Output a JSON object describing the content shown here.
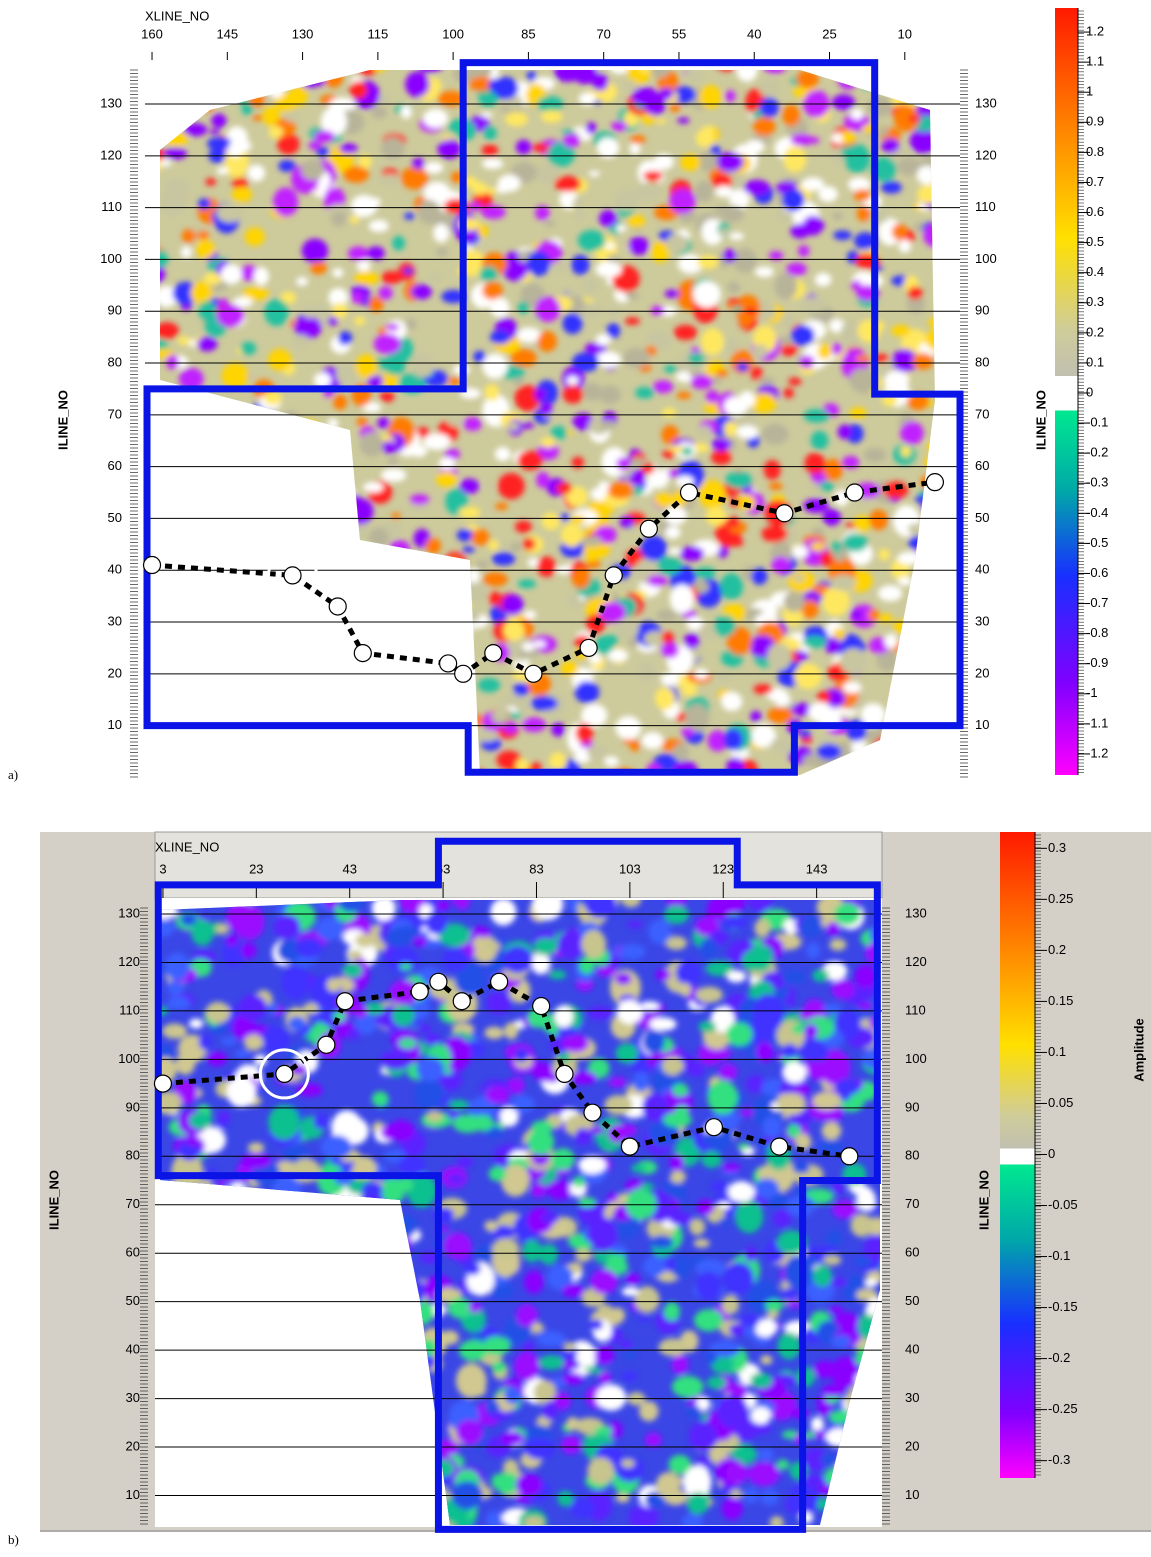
{
  "chart_data": [
    {
      "type": "heatmap",
      "panel_label": "a)",
      "xlabel": "XLINE_NO",
      "ylabel": "ILINE_NO",
      "xticks": [
        160,
        145,
        130,
        115,
        100,
        85,
        70,
        55,
        40,
        25,
        10
      ],
      "xlim": [
        161.4,
        -1
      ],
      "yticks": [
        10,
        20,
        30,
        40,
        50,
        60,
        70,
        80,
        90,
        100,
        110,
        120,
        130
      ],
      "ylim": [
        -0.5,
        138.5
      ],
      "colorbar": {
        "ticks": [
          1.2,
          1.1,
          1,
          0.9,
          0.8,
          0.7,
          0.6,
          0.5,
          0.4,
          0.3,
          0.2,
          0.1,
          0,
          -0.1,
          -0.2,
          -0.3,
          -0.4,
          -0.5,
          -0.6,
          -0.7,
          -0.8,
          -0.9,
          -1,
          -1.1,
          -1.2
        ],
        "lim": [
          -1.27,
          1.28
        ]
      },
      "outline": {
        "x": [
          161,
          97,
          97,
          32,
          32,
          -1,
          -1,
          16,
          16,
          98,
          98,
          161
        ],
        "y": [
          10,
          10,
          1,
          1,
          10,
          10,
          74,
          74,
          138,
          138,
          75,
          75
        ]
      },
      "horizon": {
        "x": [
          160,
          132,
          123,
          118,
          101,
          98,
          92,
          84,
          73,
          68,
          61,
          53,
          34,
          20,
          4
        ],
        "y": [
          41,
          39,
          33,
          24,
          22,
          20,
          24,
          20,
          25,
          39,
          48,
          55,
          51,
          55,
          57
        ]
      }
    },
    {
      "type": "heatmap",
      "panel_label": "b)",
      "xlabel": "XLINE_NO",
      "ylabel": "ILINE_NO",
      "xticks": [
        3,
        23,
        43,
        63,
        83,
        103,
        123,
        143
      ],
      "xlim": [
        1.3,
        157
      ],
      "yticks": [
        10,
        20,
        30,
        40,
        50,
        60,
        70,
        80,
        90,
        100,
        110,
        120,
        130
      ],
      "ylim": [
        3.5,
        133.3
      ],
      "colorbar": {
        "label": "Amplitude",
        "ticks": [
          0.3,
          0.25,
          0.2,
          0.15,
          0.1,
          0.05,
          0,
          -0.05,
          -0.1,
          -0.15,
          -0.2,
          -0.25,
          -0.3
        ],
        "lim": [
          -0.317,
          0.316
        ]
      },
      "outline": {
        "x": [
          2,
          62,
          62,
          126,
          126,
          156,
          156,
          140,
          140,
          62,
          62,
          2
        ],
        "y": [
          136,
          136,
          145,
          145,
          136,
          136,
          75,
          75,
          3,
          3,
          76,
          76
        ]
      },
      "horizon": {
        "x": [
          3,
          29,
          38,
          42,
          58,
          62,
          67,
          75,
          84,
          89,
          95,
          103,
          121,
          135,
          150
        ],
        "y": [
          95,
          97,
          103,
          112,
          114,
          116,
          112,
          116,
          111,
          97,
          89,
          82,
          86,
          82,
          80
        ]
      }
    }
  ]
}
